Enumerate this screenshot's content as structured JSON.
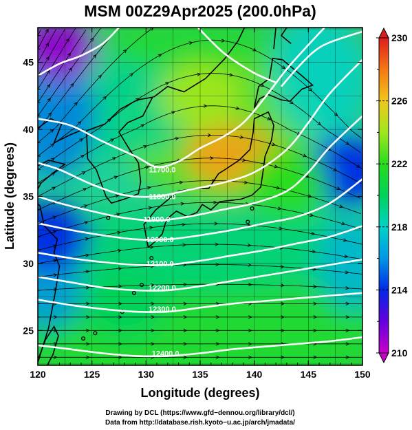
{
  "title": "MSM 00Z29Apr2025 (200.0hPa)",
  "chart_data": {
    "type": "heatmap",
    "title": "MSM 00Z29Apr2025 (200.0hPa)",
    "xlabel": "Longitude (degrees)",
    "ylabel": "Latitude  (degrees)",
    "xlim": [
      120,
      150
    ],
    "ylim": [
      22.4,
      47.6
    ],
    "x_ticks": [
      120,
      125,
      130,
      135,
      140,
      145,
      150
    ],
    "y_ticks": [
      25,
      30,
      35,
      40,
      45
    ],
    "grid": true,
    "colorbar": {
      "min": 210,
      "max": 230,
      "labels": [
        210,
        214,
        218,
        222,
        226,
        230
      ],
      "labels_text": [
        "210",
        "214",
        "218",
        "222",
        "226",
        "230"
      ],
      "extend": "both",
      "colors": [
        "#c800c8",
        "#6400dc",
        "#0028e6",
        "#0096e6",
        "#00d2c8",
        "#00d25a",
        "#28dc1e",
        "#a0e61e",
        "#f0c81e",
        "#f57814",
        "#dc1e1e"
      ]
    },
    "field_features": [
      {
        "lon": 138.0,
        "lat": 38.0,
        "value": 227,
        "note": "warm maximum"
      },
      {
        "lon": 122.0,
        "lat": 46.0,
        "value": 211,
        "note": "cold minimum"
      },
      {
        "lon": 121.0,
        "lat": 32.0,
        "value": 214
      },
      {
        "lon": 148.5,
        "lat": 37.0,
        "value": 214
      },
      {
        "lon": 135.0,
        "lat": 42.5,
        "value": 224
      },
      {
        "lon": 143.0,
        "lat": 36.0,
        "value": 222
      },
      {
        "lon": 128.0,
        "lat": 27.0,
        "value": 220
      }
    ],
    "contours": [
      {
        "level": "11700.0",
        "label": "11700.0",
        "label_lon": 131.5,
        "label_lat": 37.0,
        "path": [
          [
            120,
            40.8
          ],
          [
            123,
            40.3
          ],
          [
            126,
            39.1
          ],
          [
            129,
            38.0
          ],
          [
            131,
            37.2
          ],
          [
            133,
            37.6
          ],
          [
            135,
            38.6
          ],
          [
            137,
            39.4
          ],
          [
            139,
            40.5
          ],
          [
            141,
            42.4
          ],
          [
            143,
            44.5
          ],
          [
            145,
            46.3
          ],
          [
            146.5,
            47.6
          ]
        ]
      },
      {
        "level": "11800.0",
        "label": "11800.0",
        "label_lon": 131.5,
        "label_lat": 35.0,
        "path": [
          [
            120,
            37.5
          ],
          [
            122,
            37.0
          ],
          [
            125,
            35.9
          ],
          [
            128,
            35.1
          ],
          [
            131,
            35.0
          ],
          [
            134,
            35.5
          ],
          [
            137,
            36.0
          ],
          [
            140,
            36.8
          ],
          [
            143,
            38.5
          ],
          [
            145,
            40.5
          ],
          [
            147,
            42.7
          ],
          [
            150,
            45.2
          ]
        ]
      },
      {
        "level": "11900.0",
        "label": "11900.0",
        "label_lon": 131.0,
        "label_lat": 33.3,
        "path": [
          [
            120,
            35.0
          ],
          [
            122,
            34.5
          ],
          [
            125,
            33.9
          ],
          [
            128,
            33.4
          ],
          [
            131,
            33.2
          ],
          [
            134,
            33.5
          ],
          [
            137,
            34.0
          ],
          [
            140,
            34.5
          ],
          [
            143,
            35.4
          ],
          [
            145,
            36.8
          ],
          [
            147,
            38.7
          ],
          [
            150,
            41.0
          ]
        ]
      },
      {
        "level": "12000.0",
        "label": "12000.0",
        "label_lon": 131.3,
        "label_lat": 31.8,
        "path": [
          [
            120,
            33.0
          ],
          [
            123,
            32.5
          ],
          [
            126,
            32.1
          ],
          [
            129,
            31.8
          ],
          [
            132,
            31.8
          ],
          [
            135,
            32.1
          ],
          [
            138,
            32.5
          ],
          [
            141,
            33.0
          ],
          [
            144,
            33.5
          ],
          [
            147,
            34.5
          ],
          [
            150,
            36.3
          ]
        ]
      },
      {
        "level": "12100.0",
        "label": "12100.0",
        "label_lon": 131.3,
        "label_lat": 30.0,
        "path": [
          [
            120,
            30.8
          ],
          [
            123,
            30.4
          ],
          [
            126,
            30.1
          ],
          [
            129,
            29.9
          ],
          [
            132,
            29.9
          ],
          [
            135,
            30.2
          ],
          [
            138,
            30.6
          ],
          [
            141,
            31.0
          ],
          [
            144,
            31.5
          ],
          [
            147,
            32.0
          ],
          [
            150,
            32.8
          ]
        ]
      },
      {
        "level": "12200.0",
        "label": "12200.0",
        "label_lon": 131.5,
        "label_lat": 28.2,
        "path": [
          [
            120,
            29.0
          ],
          [
            123,
            28.6
          ],
          [
            126,
            28.2
          ],
          [
            129,
            28.0
          ],
          [
            132,
            28.0
          ],
          [
            135,
            28.3
          ],
          [
            138,
            28.7
          ],
          [
            141,
            29.1
          ],
          [
            144,
            29.5
          ],
          [
            147,
            29.9
          ],
          [
            150,
            30.3
          ]
        ]
      },
      {
        "level": "12300.0",
        "label": "12300.0",
        "label_lon": 131.5,
        "label_lat": 26.6,
        "path": [
          [
            120,
            27.3
          ],
          [
            123,
            26.9
          ],
          [
            126,
            26.6
          ],
          [
            129,
            26.4
          ],
          [
            132,
            26.4
          ],
          [
            135,
            26.7
          ],
          [
            138,
            27.0
          ],
          [
            141,
            27.2
          ],
          [
            144,
            27.4
          ],
          [
            147,
            27.6
          ],
          [
            150,
            27.8
          ]
        ]
      },
      {
        "level": "12400.0",
        "label": "12400.0",
        "label_lon": 131.8,
        "label_lat": 23.3,
        "path": [
          [
            120,
            23.9
          ],
          [
            123,
            23.6
          ],
          [
            126,
            23.3
          ],
          [
            129,
            23.1
          ],
          [
            132,
            23.1
          ],
          [
            135,
            23.3
          ],
          [
            138,
            23.6
          ],
          [
            141,
            23.8
          ],
          [
            144,
            24.0
          ],
          [
            147,
            24.2
          ],
          [
            150,
            24.5
          ]
        ]
      },
      {
        "level": "north",
        "label": "",
        "path": [
          [
            120,
            44.0
          ],
          [
            122,
            44.9
          ],
          [
            124,
            45.5
          ],
          [
            126,
            46.4
          ],
          [
            127.5,
            47.6
          ]
        ]
      },
      {
        "level": "north-east",
        "label": "",
        "path": [
          [
            134.8,
            47.6
          ],
          [
            136,
            46.6
          ],
          [
            137.5,
            45.5
          ],
          [
            140,
            44.2
          ],
          [
            142,
            43.5
          ]
        ]
      },
      {
        "level": "east",
        "label": "",
        "path": [
          [
            142.5,
            43.2
          ],
          [
            144,
            44.6
          ],
          [
            145.5,
            45.8
          ],
          [
            147,
            46.5
          ],
          [
            150,
            47.3
          ]
        ]
      }
    ],
    "credits": [
      "Drawing by DCL (https://www.gfd−dennou.org/library/dcl/)",
      "Data from http://database.rish.kyoto−u.ac.jp/arch/jmadata/"
    ]
  }
}
